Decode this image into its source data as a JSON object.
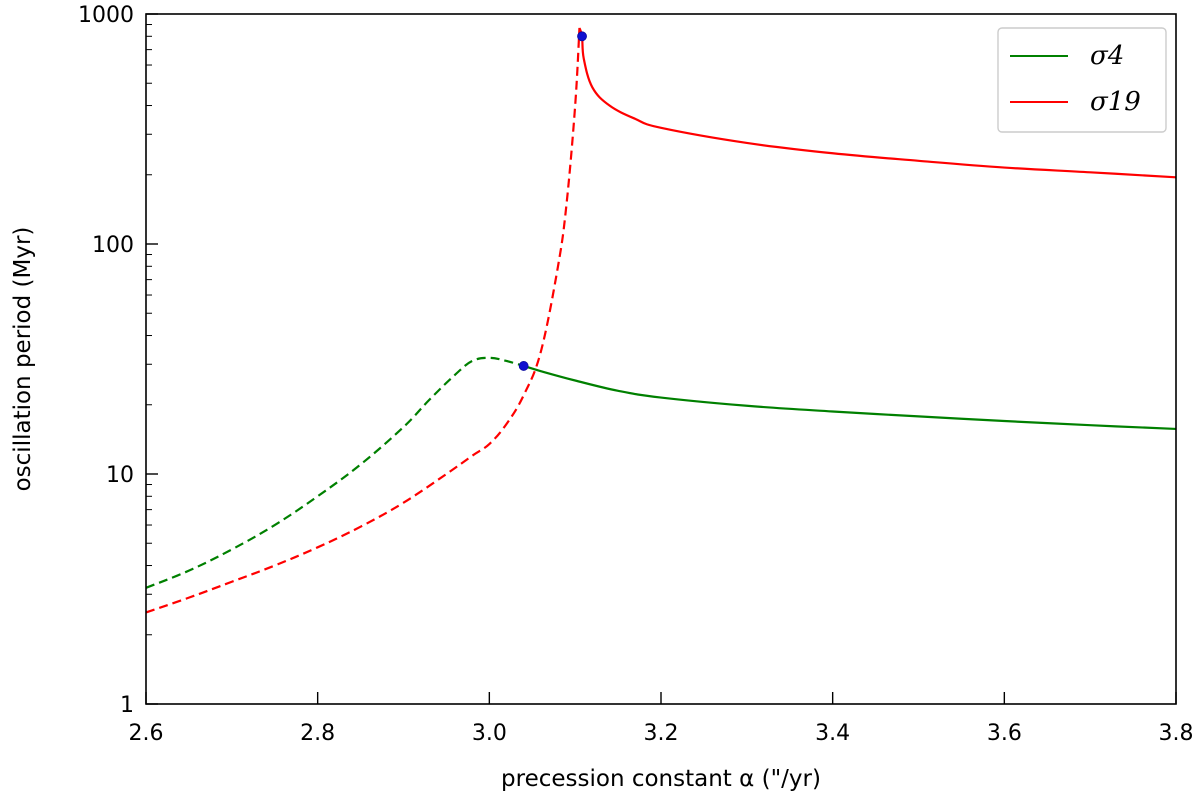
{
  "chart_data": {
    "type": "line",
    "xlabel": "precession constant α (\"/yr)",
    "ylabel": "oscillation period (Myr)",
    "xlim": [
      2.6,
      3.8
    ],
    "ylim": [
      1,
      1000
    ],
    "yscale": "log",
    "xticks": [
      "2.6",
      "2.8",
      "3.0",
      "3.2",
      "3.4",
      "3.6",
      "3.8"
    ],
    "yticks": [
      "1",
      "10",
      "100",
      "1000"
    ],
    "grid": false,
    "legend_position": "top-right",
    "series": [
      {
        "name": "σ4",
        "color": "#008000",
        "dashed": {
          "x": [
            2.6,
            2.65,
            2.7,
            2.75,
            2.8,
            2.85,
            2.9,
            2.93,
            2.96,
            2.98,
            3.0,
            3.02,
            3.04
          ],
          "y": [
            3.2,
            3.8,
            4.7,
            6.0,
            8.0,
            11.0,
            16.0,
            21.0,
            27.0,
            31.0,
            32.0,
            31.0,
            29.5
          ]
        },
        "solid": {
          "x": [
            3.04,
            3.06,
            3.1,
            3.15,
            3.2,
            3.3,
            3.4,
            3.5,
            3.6,
            3.7,
            3.8
          ],
          "y": [
            29.5,
            28.0,
            25.5,
            23.0,
            21.5,
            19.8,
            18.7,
            17.8,
            17.0,
            16.3,
            15.7
          ]
        },
        "marker": {
          "x": 3.04,
          "y": 29.5
        }
      },
      {
        "name": "σ19",
        "color": "#ff0000",
        "dashed": {
          "x": [
            2.6,
            2.65,
            2.7,
            2.75,
            2.8,
            2.85,
            2.9,
            2.95,
            2.98,
            3.0,
            3.02,
            3.04,
            3.06,
            3.08,
            3.09,
            3.1,
            3.105
          ],
          "y": [
            2.5,
            2.9,
            3.4,
            4.0,
            4.8,
            5.9,
            7.5,
            10.0,
            12.0,
            13.5,
            16.5,
            22.0,
            34.0,
            80.0,
            150.0,
            400.0,
            870.0
          ]
        },
        "solid": {
          "x": [
            3.105,
            3.108,
            3.11,
            3.12,
            3.14,
            3.17,
            3.2,
            3.3,
            3.4,
            3.5,
            3.6,
            3.7,
            3.8
          ],
          "y": [
            870.0,
            800.0,
            640.0,
            480.0,
            400.0,
            350.0,
            320.0,
            275.0,
            248.0,
            230.0,
            215.0,
            205.0,
            195.0
          ]
        },
        "marker": {
          "x": 3.108,
          "y": 800.0
        }
      }
    ]
  }
}
